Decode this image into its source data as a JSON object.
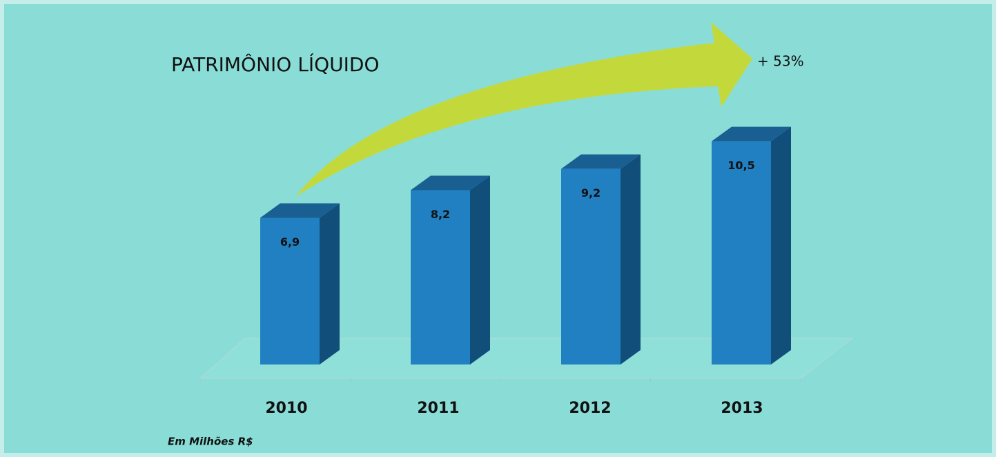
{
  "chart_data": {
    "type": "bar3d",
    "title": "PATRIMÔNIO LÍQUIDO",
    "annotation": "+ 53%",
    "note": "Em Milhões R$",
    "categories": [
      "2010",
      "2011",
      "2012",
      "2013"
    ],
    "values": [
      6.9,
      8.2,
      9.2,
      10.5
    ],
    "value_labels": [
      "6,9",
      "8,2",
      "9,2",
      "10,5"
    ],
    "color": "#2180c2"
  }
}
